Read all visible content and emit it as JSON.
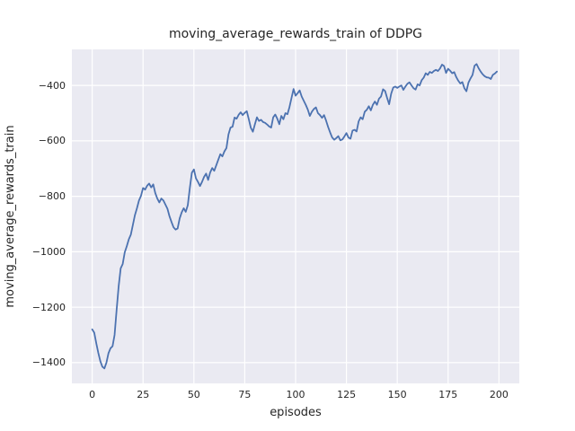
{
  "figure": {
    "title": "moving_average_rewards_train of DDPG",
    "xlabel": "episodes",
    "ylabel": "moving_average_rewards_train"
  },
  "chart_data": {
    "type": "line",
    "title": "moving_average_rewards_train of DDPG",
    "xlabel": "episodes",
    "ylabel": "moving_average_rewards_train",
    "legend": null,
    "grid": true,
    "x_start": 0,
    "x_step": 1,
    "xlim": [
      -10,
      210
    ],
    "ylim": [
      -1475,
      -270
    ],
    "xticks": [
      0,
      25,
      50,
      75,
      100,
      125,
      150,
      175,
      200
    ],
    "xtick_labels": [
      "0",
      "25",
      "50",
      "75",
      "100",
      "125",
      "150",
      "175",
      "200"
    ],
    "yticks": [
      -400,
      -600,
      -800,
      -1000,
      -1200,
      -1400
    ],
    "ytick_labels": [
      "−400",
      "−600",
      "−800",
      "−1000",
      "−1200",
      "−1400"
    ],
    "values": [
      -1280,
      -1292,
      -1330,
      -1365,
      -1395,
      -1415,
      -1421,
      -1400,
      -1366,
      -1348,
      -1341,
      -1300,
      -1210,
      -1125,
      -1060,
      -1044,
      -1002,
      -980,
      -955,
      -938,
      -903,
      -868,
      -843,
      -815,
      -798,
      -770,
      -776,
      -762,
      -754,
      -768,
      -757,
      -788,
      -808,
      -822,
      -808,
      -815,
      -830,
      -845,
      -872,
      -893,
      -912,
      -920,
      -916,
      -880,
      -858,
      -843,
      -856,
      -832,
      -770,
      -715,
      -703,
      -735,
      -748,
      -763,
      -748,
      -730,
      -718,
      -741,
      -714,
      -698,
      -708,
      -688,
      -668,
      -648,
      -656,
      -638,
      -626,
      -577,
      -552,
      -549,
      -516,
      -520,
      -506,
      -497,
      -507,
      -499,
      -493,
      -522,
      -553,
      -567,
      -540,
      -515,
      -528,
      -524,
      -532,
      -535,
      -541,
      -548,
      -552,
      -515,
      -505,
      -520,
      -540,
      -510,
      -522,
      -500,
      -504,
      -478,
      -445,
      -413,
      -437,
      -428,
      -418,
      -440,
      -455,
      -470,
      -487,
      -510,
      -495,
      -485,
      -479,
      -500,
      -507,
      -517,
      -507,
      -527,
      -550,
      -570,
      -588,
      -596,
      -590,
      -583,
      -598,
      -595,
      -584,
      -572,
      -588,
      -592,
      -563,
      -560,
      -566,
      -530,
      -515,
      -522,
      -495,
      -488,
      -475,
      -490,
      -470,
      -458,
      -470,
      -448,
      -440,
      -414,
      -420,
      -445,
      -468,
      -430,
      -408,
      -404,
      -409,
      -404,
      -400,
      -416,
      -404,
      -394,
      -389,
      -400,
      -410,
      -415,
      -396,
      -400,
      -381,
      -372,
      -356,
      -362,
      -351,
      -355,
      -348,
      -344,
      -348,
      -339,
      -325,
      -330,
      -355,
      -340,
      -347,
      -356,
      -352,
      -370,
      -383,
      -393,
      -388,
      -410,
      -421,
      -390,
      -375,
      -362,
      -329,
      -323,
      -338,
      -350,
      -360,
      -367,
      -371,
      -372,
      -377,
      -362,
      -357,
      -350
    ],
    "style": {
      "line_color": "#4c72b0",
      "line_width": 1.8,
      "axes_bg": "#eaeaf2",
      "grid_color": "#ffffff",
      "grid_width": 1.2,
      "figure_bg": "#ffffff",
      "text_color": "#262626"
    }
  }
}
